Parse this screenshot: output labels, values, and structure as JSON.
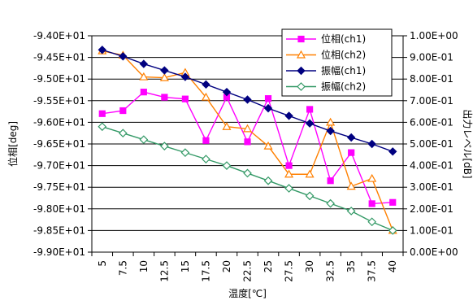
{
  "chart_data": {
    "type": "line",
    "title": "",
    "xlabel": "温度[℃]",
    "ylabel": "位相[deg]",
    "y2label": "出力レベル[dB]",
    "categories": [
      "5",
      "7.5",
      "10",
      "12.5",
      "15",
      "17.5",
      "20",
      "22.5",
      "25",
      "27.5",
      "30",
      "32.5",
      "35",
      "37.5",
      "40"
    ],
    "ylim": [
      -99.0,
      -94.0
    ],
    "y2lim": [
      0.0,
      1.0
    ],
    "yticks": [
      "-9.40E+01",
      "-9.45E+01",
      "-9.50E+01",
      "-9.55E+01",
      "-9.60E+01",
      "-9.65E+01",
      "-9.70E+01",
      "-9.75E+01",
      "-9.80E+01",
      "-9.85E+01",
      "-9.90E+01"
    ],
    "y2ticks": [
      "1.00E+00",
      "9.00E-01",
      "8.00E-01",
      "7.00E-01",
      "6.00E-01",
      "5.00E-01",
      "4.00E-01",
      "3.00E-01",
      "2.00E-01",
      "1.00E-01",
      "0.00E+00"
    ],
    "legend_position": "top-right",
    "grid": "horizontal",
    "series": [
      {
        "name": "位相(ch1)",
        "axis": "left",
        "color": "#ff00ff",
        "marker": "square-filled",
        "values": [
          -95.8,
          -95.73,
          -95.3,
          -95.42,
          -95.46,
          -96.42,
          -95.42,
          -96.45,
          -95.45,
          -97.0,
          -95.7,
          -97.35,
          -96.7,
          -97.88,
          -97.85
        ]
      },
      {
        "name": "位相(ch2)",
        "axis": "left",
        "color": "#ff8000",
        "marker": "triangle-open",
        "values": [
          -94.35,
          -94.45,
          -94.95,
          -94.97,
          -94.85,
          -95.42,
          -96.1,
          -96.15,
          -96.55,
          -97.2,
          -97.2,
          -96.0,
          -97.48,
          -97.3,
          -98.5
        ]
      },
      {
        "name": "振幅(ch1)",
        "axis": "right",
        "color": "#000080",
        "marker": "diamond-filled",
        "values": [
          0.935,
          0.905,
          0.87,
          0.84,
          0.81,
          0.775,
          0.74,
          0.705,
          0.665,
          0.63,
          0.595,
          0.56,
          0.53,
          0.5,
          0.465
        ]
      },
      {
        "name": "振幅(ch2)",
        "axis": "right",
        "color": "#339966",
        "marker": "diamond-open",
        "values": [
          0.58,
          0.55,
          0.52,
          0.49,
          0.46,
          0.43,
          0.4,
          0.365,
          0.33,
          0.295,
          0.26,
          0.225,
          0.19,
          0.14,
          0.1
        ]
      }
    ]
  }
}
